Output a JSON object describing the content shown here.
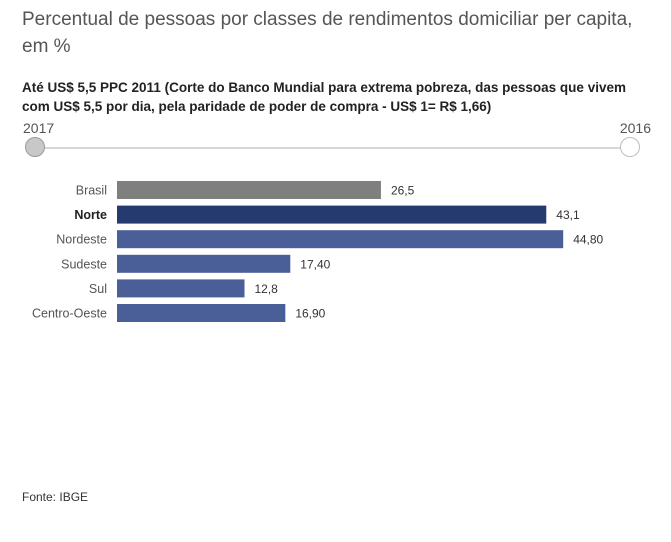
{
  "header": {
    "title": "Percentual de pessoas por classes de rendimentos domiciliar per capita, em %",
    "subtitle": "Até US$ 5,5 PPC 2011 (Corte do Banco Mundial para extrema pobreza, das pessoas que vivem com US$ 5,5 por dia, pela paridade de poder de compra - US$ 1= R$ 1,66)"
  },
  "slider": {
    "start_label": "2017",
    "end_label": "2016",
    "selected": "2017"
  },
  "colors": {
    "brasil": "#7f7f7f",
    "highlight": "#253a6e",
    "default": "#4a5f97"
  },
  "chart_data": {
    "type": "bar",
    "orientation": "horizontal",
    "categories": [
      "Brasil",
      "Norte",
      "Nordeste",
      "Sudeste",
      "Sul",
      "Centro-Oeste"
    ],
    "values": [
      26.5,
      43.1,
      44.8,
      17.4,
      12.8,
      16.9
    ],
    "value_labels": [
      "26,5",
      "43,1",
      "44,80",
      "17,40",
      "12,8",
      "16,90"
    ],
    "highlighted": "Norte",
    "xlim": [
      0,
      50
    ]
  },
  "footer": {
    "source": "Fonte: IBGE"
  }
}
